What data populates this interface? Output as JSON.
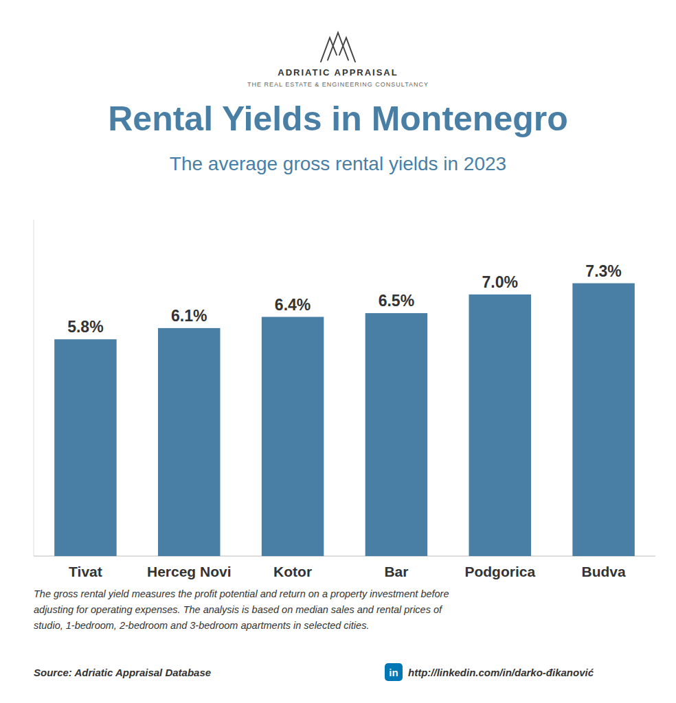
{
  "chart_data": {
    "type": "bar",
    "title": "Rental Yields in Montenegro",
    "subtitle": "The average gross rental yields in 2023",
    "categories": [
      "Tivat",
      "Herceg Novi",
      "Kotor",
      "Bar",
      "Podgorica",
      "Budva"
    ],
    "values": [
      5.8,
      6.1,
      6.4,
      6.5,
      7.0,
      7.3
    ],
    "value_labels": [
      "5.8%",
      "6.1%",
      "6.4%",
      "6.5%",
      "7.0%",
      "7.3%"
    ],
    "data_labels": true,
    "color": "#4a7fa5",
    "ylim": [
      0,
      9
    ],
    "grid": false,
    "tick_labels": "x",
    "annotations": [
      "ADRIATIC APPRAISAL",
      "THE REAL ESTATE & ENGINEERING CONSULTANCY",
      "The gross rental yield measures the profit potential and return on a property investment before\nadjusting for operating expenses. The analysis is based on median sales and rental prices of\nstudio, 1-bedroom, 2-bedroom and 3-bedroom apartments in selected cities.",
      "Source: Adriatic Appraisal Database",
      "in",
      "http://linkedin.com/in/darko-đikanović"
    ]
  }
}
